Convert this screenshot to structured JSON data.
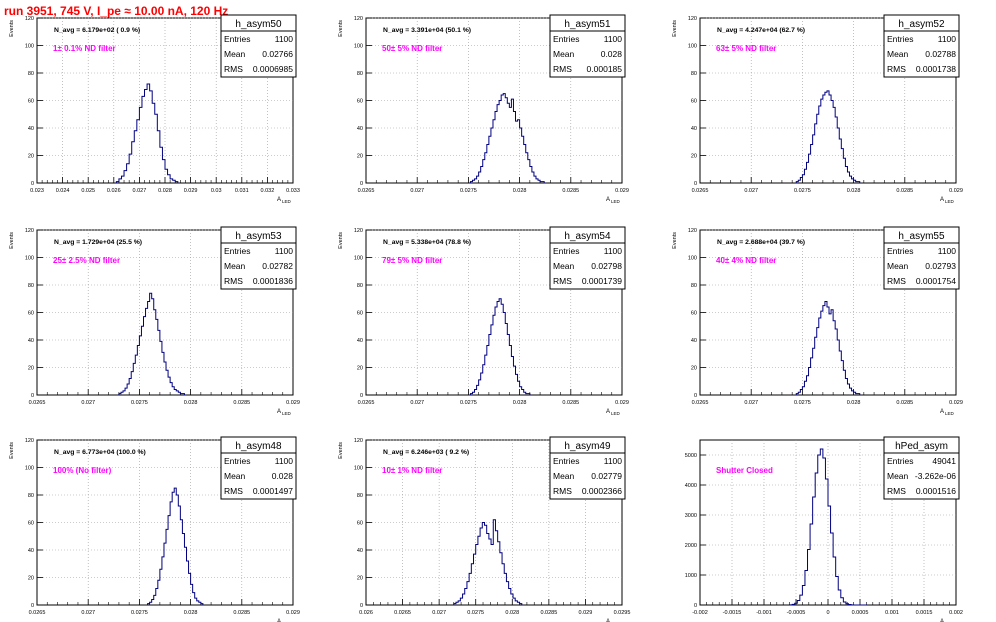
{
  "page_title": "run 3951,   745 V, I_pe ≈ 10.00 nA, 120 Hz",
  "colors": {
    "hist": "#000080",
    "annotation": "#ff00ff",
    "title": "#ff0000",
    "grid": "#999999"
  },
  "chart_data": [
    {
      "type": "bar",
      "name": "h_asym50",
      "nav": "N_avg = 6.179e+02 ( 0.9 %)",
      "note": "1± 0.1% ND filter",
      "ylabel": "Events",
      "xlabel": "A_LED",
      "xlim": [
        0.023,
        0.033
      ],
      "ylim": [
        0,
        120
      ],
      "xticks": [
        "0.023",
        "0.024",
        "0.025",
        "0.026",
        "0.027",
        "0.028",
        "0.029",
        "0.03",
        "0.031",
        "0.032",
        "0.033"
      ],
      "yticks": [
        "0",
        "20",
        "40",
        "60",
        "80",
        "100",
        "120"
      ],
      "stats": {
        "entries": "1100",
        "mean": "0.02766",
        "rms": "0.0006985"
      },
      "bins": {
        "start": 0.0261,
        "width": 0.0001,
        "values": [
          1,
          3,
          5,
          9,
          14,
          21,
          30,
          38,
          46,
          55,
          63,
          68,
          72,
          67,
          58,
          50,
          38,
          26,
          17,
          10,
          6,
          3,
          2,
          1
        ]
      }
    },
    {
      "type": "bar",
      "name": "h_asym51",
      "nav": "N_avg = 3.391e+04 (50.1 %)",
      "note": "50± 5% ND filter",
      "ylabel": "Events",
      "xlabel": "A_LED",
      "xlim": [
        0.0265,
        0.029
      ],
      "ylim": [
        0,
        120
      ],
      "xticks": [
        "0.0265",
        "0.027",
        "0.0275",
        "0.028",
        "0.0285",
        "0.029"
      ],
      "yticks": [
        "0",
        "20",
        "40",
        "60",
        "80",
        "100",
        "120"
      ],
      "stats": {
        "entries": "1100",
        "mean": "0.028",
        "rms": "0.000185"
      },
      "bins": {
        "start": 0.02752,
        "width": 2e-05,
        "values": [
          1,
          2,
          3,
          5,
          8,
          12,
          17,
          22,
          28,
          34,
          40,
          46,
          52,
          57,
          60,
          64,
          65,
          62,
          58,
          55,
          61,
          52,
          45,
          46,
          40,
          34,
          28,
          22,
          17,
          12,
          8,
          5,
          3,
          2,
          1,
          1
        ]
      }
    },
    {
      "type": "bar",
      "name": "h_asym52",
      "nav": "N_avg = 4.247e+04 (62.7 %)",
      "note": "63± 5% ND filter",
      "ylabel": "Events",
      "xlabel": "A_LED",
      "xlim": [
        0.0265,
        0.029
      ],
      "ylim": [
        0,
        120
      ],
      "xticks": [
        "0.0265",
        "0.027",
        "0.0275",
        "0.028",
        "0.0285",
        "0.029"
      ],
      "yticks": [
        "0",
        "20",
        "40",
        "60",
        "80",
        "100",
        "120"
      ],
      "stats": {
        "entries": "1100",
        "mean": "0.02788",
        "rms": "0.0001738"
      },
      "bins": {
        "start": 0.02744,
        "width": 2e-05,
        "values": [
          1,
          2,
          4,
          6,
          10,
          15,
          21,
          28,
          35,
          43,
          50,
          56,
          61,
          64,
          66,
          67,
          64,
          60,
          55,
          48,
          40,
          32,
          25,
          18,
          12,
          8,
          5,
          3,
          2,
          1,
          1
        ]
      }
    },
    {
      "type": "bar",
      "name": "h_asym53",
      "nav": "N_avg = 1.729e+04 (25.5 %)",
      "note": "25± 2.5% ND filter",
      "ylabel": "Events",
      "xlabel": "A_LED",
      "xlim": [
        0.0265,
        0.029
      ],
      "ylim": [
        0,
        120
      ],
      "xticks": [
        "0.0265",
        "0.027",
        "0.0275",
        "0.028",
        "0.0285",
        "0.029"
      ],
      "yticks": [
        "0",
        "20",
        "40",
        "60",
        "80",
        "100",
        "120"
      ],
      "stats": {
        "entries": "1100",
        "mean": "0.02782",
        "rms": "0.0001836"
      },
      "bins": {
        "start": 0.0273,
        "width": 2e-05,
        "values": [
          1,
          2,
          3,
          5,
          8,
          12,
          17,
          23,
          29,
          36,
          43,
          50,
          57,
          63,
          68,
          74,
          70,
          62,
          55,
          47,
          39,
          31,
          24,
          18,
          13,
          9,
          6,
          4,
          3,
          2,
          1,
          1
        ]
      }
    },
    {
      "type": "bar",
      "name": "h_asym54",
      "nav": "N_avg = 5.338e+04 (78.8 %)",
      "note": "79± 5% ND filter",
      "ylabel": "Events",
      "xlabel": "A_LED",
      "xlim": [
        0.0265,
        0.029
      ],
      "ylim": [
        0,
        120
      ],
      "xticks": [
        "0.0265",
        "0.027",
        "0.0275",
        "0.028",
        "0.0285",
        "0.029"
      ],
      "yticks": [
        "0",
        "20",
        "40",
        "60",
        "80",
        "100",
        "120"
      ],
      "stats": {
        "entries": "1100",
        "mean": "0.02798",
        "rms": "0.0001739"
      },
      "bins": {
        "start": 0.02752,
        "width": 2e-05,
        "values": [
          1,
          2,
          4,
          7,
          11,
          16,
          22,
          29,
          36,
          44,
          51,
          58,
          64,
          68,
          70,
          66,
          60,
          52,
          44,
          36,
          28,
          21,
          15,
          10,
          6,
          4,
          2,
          1,
          1
        ]
      }
    },
    {
      "type": "bar",
      "name": "h_asym55",
      "nav": "N_avg = 2.688e+04 (39.7 %)",
      "note": "40± 4% ND filter",
      "ylabel": "Events",
      "xlabel": "A_LED",
      "xlim": [
        0.0265,
        0.029
      ],
      "ylim": [
        0,
        120
      ],
      "xticks": [
        "0.0265",
        "0.027",
        "0.0275",
        "0.028",
        "0.0285",
        "0.029"
      ],
      "yticks": [
        "0",
        "20",
        "40",
        "60",
        "80",
        "100",
        "120"
      ],
      "stats": {
        "entries": "1100",
        "mean": "0.02793",
        "rms": "0.0001754"
      },
      "bins": {
        "start": 0.02744,
        "width": 2e-05,
        "values": [
          1,
          2,
          4,
          6,
          10,
          14,
          20,
          27,
          34,
          42,
          49,
          56,
          61,
          65,
          68,
          64,
          59,
          62,
          54,
          48,
          40,
          32,
          25,
          18,
          12,
          8,
          5,
          3,
          2,
          1,
          1
        ]
      }
    },
    {
      "type": "bar",
      "name": "h_asym48",
      "nav": "N_avg = 6.773e+04 (100.0 %)",
      "note": "100% (No filter)",
      "ylabel": "Events",
      "xlabel": "A_LED",
      "xlim": [
        0.0265,
        0.029
      ],
      "ylim": [
        0,
        120
      ],
      "xticks": [
        "0.0265",
        "0.027",
        "0.0275",
        "0.028",
        "0.0285",
        "0.029"
      ],
      "yticks": [
        "0",
        "20",
        "40",
        "60",
        "80",
        "100",
        "120"
      ],
      "stats": {
        "entries": "1100",
        "mean": "0.028",
        "rms": "0.0001497"
      },
      "bins": {
        "start": 0.02758,
        "width": 2e-05,
        "values": [
          1,
          2,
          4,
          7,
          12,
          18,
          26,
          35,
          45,
          55,
          65,
          75,
          82,
          85,
          80,
          72,
          62,
          52,
          42,
          32,
          23,
          15,
          9,
          5,
          3,
          2,
          1
        ]
      }
    },
    {
      "type": "bar",
      "name": "h_asym49",
      "nav": "N_avg = 6.246e+03 ( 9.2 %)",
      "note": "10± 1% ND filter",
      "ylabel": "Events",
      "xlabel": "A_LED",
      "xlim": [
        0.026,
        0.0295
      ],
      "ylim": [
        0,
        120
      ],
      "xticks": [
        "0.026",
        "0.0265",
        "0.027",
        "0.0275",
        "0.028",
        "0.0285",
        "0.029",
        "0.0295"
      ],
      "yticks": [
        "0",
        "20",
        "40",
        "60",
        "80",
        "100",
        "120"
      ],
      "stats": {
        "entries": "1100",
        "mean": "0.02779",
        "rms": "0.0002366"
      },
      "bins": {
        "start": 0.0272,
        "width": 3e-05,
        "values": [
          1,
          2,
          3,
          5,
          8,
          12,
          17,
          23,
          30,
          37,
          44,
          50,
          56,
          60,
          58,
          52,
          48,
          44,
          62,
          54,
          46,
          38,
          30,
          23,
          17,
          12,
          8,
          5,
          3,
          2,
          1
        ]
      }
    },
    {
      "type": "bar",
      "name": "hPed_asym",
      "nav": "",
      "note": "Shutter Closed",
      "ylabel": "",
      "xlabel": "A_LED",
      "xlim": [
        -0.002,
        0.002
      ],
      "ylim": [
        0,
        5500
      ],
      "xticks": [
        "-0.002",
        "-0.0015",
        "-0.001",
        "-0.0005",
        "0",
        "0.0005",
        "0.001",
        "0.0015",
        "0.002"
      ],
      "yticks": [
        "0",
        "1000",
        "2000",
        "3000",
        "4000",
        "5000"
      ],
      "stats": {
        "entries": "49041",
        "mean": "-3.262e-06",
        "rms": "0.0001516"
      },
      "bins": {
        "start": -0.0006,
        "width": 4e-05,
        "values": [
          5,
          20,
          60,
          150,
          330,
          650,
          1150,
          1850,
          2700,
          3600,
          4400,
          5000,
          5200,
          4900,
          4200,
          3300,
          2400,
          1600,
          950,
          500,
          240,
          100,
          40,
          15,
          5,
          2,
          1,
          1,
          1,
          1
        ]
      }
    }
  ]
}
